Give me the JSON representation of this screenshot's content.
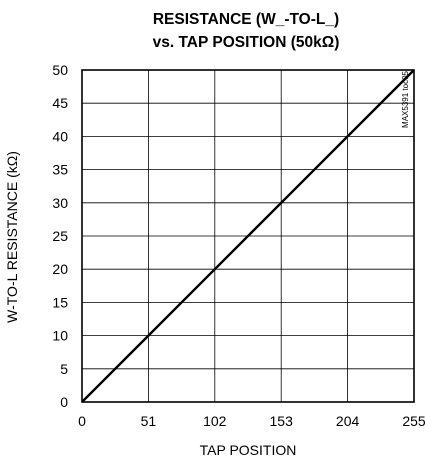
{
  "chart_data": {
    "type": "line",
    "title": "RESISTANCE (W_-TO-L_)",
    "subtitle": "vs. TAP POSITION (50kΩ)",
    "xlabel": "TAP POSITION",
    "ylabel": "W-TO-L RESISTANCE (kΩ)",
    "xlim": [
      0,
      255
    ],
    "ylim": [
      0,
      50
    ],
    "x_ticks": [
      0,
      51,
      102,
      153,
      204,
      255
    ],
    "y_ticks": [
      0,
      5,
      10,
      15,
      20,
      25,
      30,
      35,
      40,
      45,
      50
    ],
    "grid": true,
    "legend": "none",
    "watermark": "MAX5391 toc05",
    "series": [
      {
        "color": "#000000",
        "points": [
          {
            "x": 0,
            "y": 0
          },
          {
            "x": 51,
            "y": 10
          },
          {
            "x": 102,
            "y": 20
          },
          {
            "x": 153,
            "y": 30
          },
          {
            "x": 204,
            "y": 40
          },
          {
            "x": 255,
            "y": 50
          }
        ]
      }
    ]
  }
}
